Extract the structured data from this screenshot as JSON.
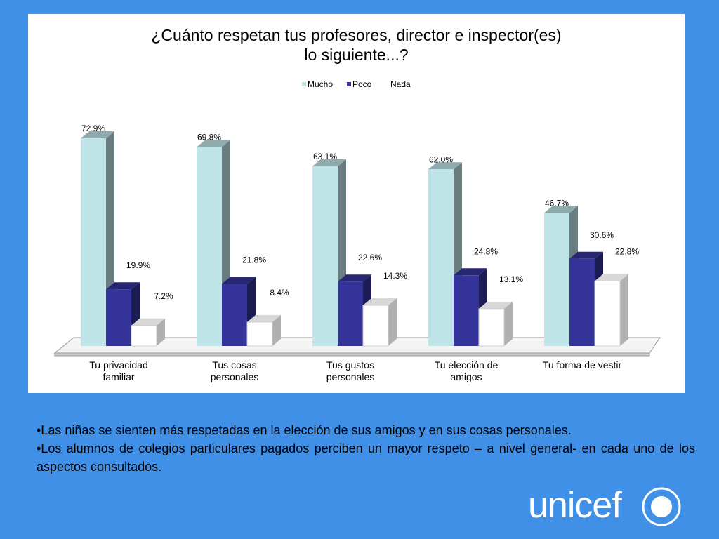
{
  "chart_data": {
    "type": "bar3d",
    "title": "¿Cuánto respetan tus profesores, director e inspector(es)\nlo siguiente...?",
    "categories": [
      "Tu privacidad\nfamiliar",
      "Tus cosas\npersonales",
      "Tus gustos\npersonales",
      "Tu elección de\namigos",
      "Tu forma de vestir"
    ],
    "series": [
      {
        "name": "Mucho",
        "color": "#bfe4e8",
        "values": [
          72.9,
          69.8,
          63.1,
          62.0,
          46.7
        ],
        "value_labels": [
          "72.9%",
          "69.8%",
          "63.1%",
          "62.0%",
          "46.7%"
        ]
      },
      {
        "name": "Poco",
        "color": "#333399",
        "values": [
          19.9,
          21.8,
          22.6,
          24.8,
          30.6
        ],
        "value_labels": [
          "19.9%",
          "21.8%",
          "22.6%",
          "24.8%",
          "30.6%"
        ]
      },
      {
        "name": "Nada",
        "color": "#ffffff",
        "values": [
          7.2,
          8.4,
          14.3,
          13.1,
          22.8
        ],
        "value_labels": [
          "7.2%",
          "8.4%",
          "14.3%",
          "13.1%",
          "22.8%"
        ]
      }
    ],
    "legend": "top"
  },
  "notes": [
    "•Las niñas se sienten más respetadas en la elección de sus amigos  y en sus cosas personales.",
    "•Los alumnos de colegios particulares pagados perciben un mayor respeto – a nivel general- en cada uno de los aspectos consultados."
  ],
  "logo": "unicef"
}
